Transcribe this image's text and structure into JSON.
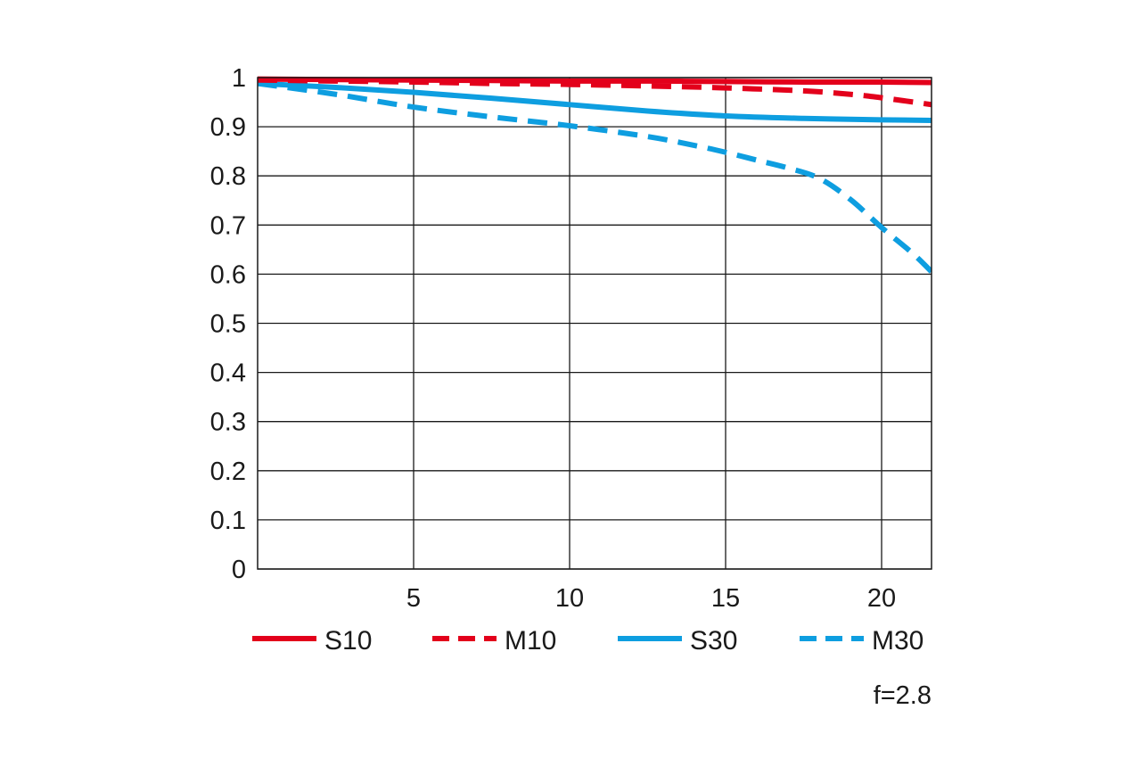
{
  "chart_data": {
    "type": "line",
    "title": "",
    "xlabel": "",
    "ylabel": "",
    "xlim": [
      0,
      21.6
    ],
    "ylim": [
      0,
      1
    ],
    "x_ticks": [
      5,
      10,
      15,
      20
    ],
    "y_ticks": [
      0,
      0.1,
      0.2,
      0.3,
      0.4,
      0.5,
      0.6,
      0.7,
      0.8,
      0.9,
      1
    ],
    "x_tick_labels": [
      "5",
      "10",
      "15",
      "20"
    ],
    "y_tick_labels": [
      "0",
      "0.1",
      "0.2",
      "0.3",
      "0.4",
      "0.5",
      "0.6",
      "0.7",
      "0.8",
      "0.9",
      "1"
    ],
    "grid": true,
    "legend_position": "bottom",
    "annotation": "f=2.8",
    "series": [
      {
        "name": "S10",
        "color": "#e3001b",
        "dash": "solid",
        "x": [
          0,
          2.5,
          5,
          7.5,
          10,
          12.5,
          15,
          17.5,
          20,
          21.6
        ],
        "y": [
          0.997,
          0.996,
          0.995,
          0.994,
          0.993,
          0.993,
          0.992,
          0.991,
          0.991,
          0.99
        ]
      },
      {
        "name": "M10",
        "color": "#e3001b",
        "dash": "dashed",
        "x": [
          0,
          2.5,
          5,
          7.5,
          10,
          12.5,
          15,
          17.5,
          19,
          20,
          21.6
        ],
        "y": [
          0.995,
          0.993,
          0.991,
          0.988,
          0.986,
          0.983,
          0.979,
          0.973,
          0.966,
          0.959,
          0.945
        ]
      },
      {
        "name": "S30",
        "color": "#0e9ee0",
        "dash": "solid",
        "x": [
          0,
          2.5,
          5,
          7.5,
          10,
          12.5,
          15,
          17.5,
          20,
          21.6
        ],
        "y": [
          0.988,
          0.98,
          0.97,
          0.958,
          0.945,
          0.932,
          0.922,
          0.917,
          0.914,
          0.913
        ]
      },
      {
        "name": "M30",
        "color": "#0e9ee0",
        "dash": "dashed",
        "x": [
          0,
          2.5,
          5,
          7.5,
          10,
          12.5,
          14,
          15,
          16,
          17,
          18,
          19,
          20,
          21,
          21.6
        ],
        "y": [
          0.988,
          0.966,
          0.94,
          0.92,
          0.902,
          0.88,
          0.862,
          0.848,
          0.832,
          0.816,
          0.795,
          0.752,
          0.695,
          0.642,
          0.605
        ]
      }
    ]
  }
}
